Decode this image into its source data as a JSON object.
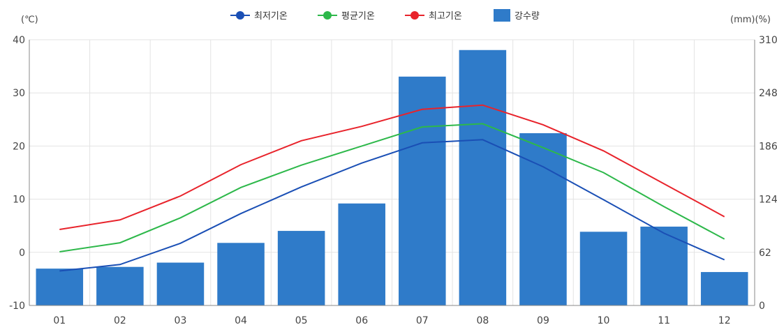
{
  "chart_data": {
    "type": "bar+line",
    "categories": [
      "01",
      "02",
      "03",
      "04",
      "05",
      "06",
      "07",
      "08",
      "09",
      "10",
      "11",
      "12"
    ],
    "left_axis": {
      "unit": "(℃)",
      "ylim": [
        -10,
        40
      ],
      "ticks": [
        "-10",
        "0",
        "10",
        "20",
        "30",
        "40"
      ]
    },
    "right_axis": {
      "unit": "(mm)(%)",
      "ylim": [
        0,
        310
      ],
      "ticks": [
        "0",
        "62",
        "124",
        "186",
        "248",
        "310"
      ]
    },
    "grid": true,
    "legend_position": "top-center",
    "bars": {
      "name": "강수량",
      "color": "#2f7bc9",
      "values": [
        43,
        45,
        50,
        73,
        87,
        119,
        267,
        298,
        201,
        86,
        92,
        39
      ]
    },
    "series": [
      {
        "name": "최저기온",
        "color": "#1a4fb5",
        "values": [
          -3.5,
          -2.3,
          1.7,
          7.3,
          12.3,
          16.8,
          20.6,
          21.2,
          16.1,
          9.9,
          3.6,
          -1.4
        ]
      },
      {
        "name": "평균기온",
        "color": "#2db84a",
        "values": [
          0.1,
          1.8,
          6.5,
          12.2,
          16.4,
          20.0,
          23.6,
          24.2,
          19.7,
          15.0,
          8.6,
          2.5
        ]
      },
      {
        "name": "최고기온",
        "color": "#e8232b",
        "values": [
          4.3,
          6.1,
          10.6,
          16.5,
          21.0,
          23.7,
          26.9,
          27.7,
          24.0,
          19.1,
          12.9,
          6.7
        ]
      }
    ]
  }
}
